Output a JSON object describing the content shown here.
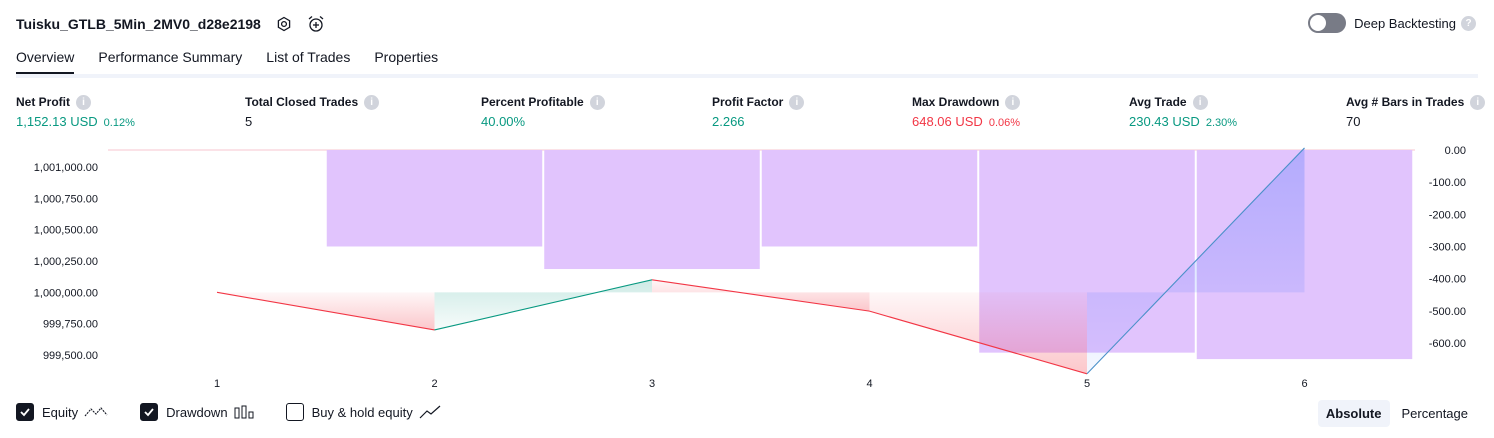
{
  "header": {
    "title": "Tuisku_GTLB_5Min_2MV0_d28e2198",
    "settings_icon": "gear-icon",
    "alert_icon": "alarm-add-icon"
  },
  "deep_backtesting": {
    "label": "Deep Backtesting",
    "enabled": false
  },
  "tabs": [
    {
      "label": "Overview",
      "active": true
    },
    {
      "label": "Performance Summary",
      "active": false
    },
    {
      "label": "List of Trades",
      "active": false
    },
    {
      "label": "Properties",
      "active": false
    }
  ],
  "metrics": [
    {
      "label": "Net Profit",
      "value": "1,152.13 USD",
      "pct": "0.12%",
      "color": "#089981"
    },
    {
      "label": "Total Closed Trades",
      "value": "5",
      "pct": "",
      "color": "#131722"
    },
    {
      "label": "Percent Profitable",
      "value": "40.00%",
      "pct": "",
      "color": "#089981"
    },
    {
      "label": "Profit Factor",
      "value": "2.266",
      "pct": "",
      "color": "#089981"
    },
    {
      "label": "Max Drawdown",
      "value": "648.06 USD",
      "pct": "0.06%",
      "color": "#f23645"
    },
    {
      "label": "Avg Trade",
      "value": "230.43 USD",
      "pct": "2.30%",
      "color": "#089981"
    },
    {
      "label": "Avg # Bars in Trades",
      "value": "70",
      "pct": "",
      "color": "#131722"
    }
  ],
  "chart_data": {
    "type": "line",
    "x": [
      1,
      2,
      3,
      4,
      5,
      6
    ],
    "x_tick_labels": [
      "1",
      "2",
      "3",
      "4",
      "5",
      "6"
    ],
    "equity": [
      1000000,
      999700,
      1000100,
      999850,
      999350,
      1001152.13
    ],
    "drawdown": [
      0,
      -300,
      -370,
      -300,
      -630,
      -650
    ],
    "equity_axis_ticks": [
      "1,001,000.00",
      "1,000,750.00",
      "1,000,500.00",
      "1,000,250.00",
      "1,000,000.00",
      "999,750.00",
      "999,500.00"
    ],
    "drawdown_axis_ticks": [
      "0.00",
      "-100.00",
      "-200.00",
      "-300.00",
      "-400.00",
      "-500.00",
      "-600.00"
    ],
    "equity_ylim": [
      999500,
      1001000
    ],
    "drawdown_ylim": [
      -600,
      0
    ],
    "colors": {
      "up": "#089981",
      "down": "#f23645",
      "drawdown": "#e1c4fd",
      "final": "#2962ff"
    }
  },
  "bottom": {
    "equity_label": "Equity",
    "equity_checked": true,
    "drawdown_label": "Drawdown",
    "drawdown_checked": true,
    "buyhold_label": "Buy & hold equity",
    "buyhold_checked": false
  },
  "modes": [
    {
      "label": "Absolute",
      "active": true
    },
    {
      "label": "Percentage",
      "active": false
    }
  ]
}
